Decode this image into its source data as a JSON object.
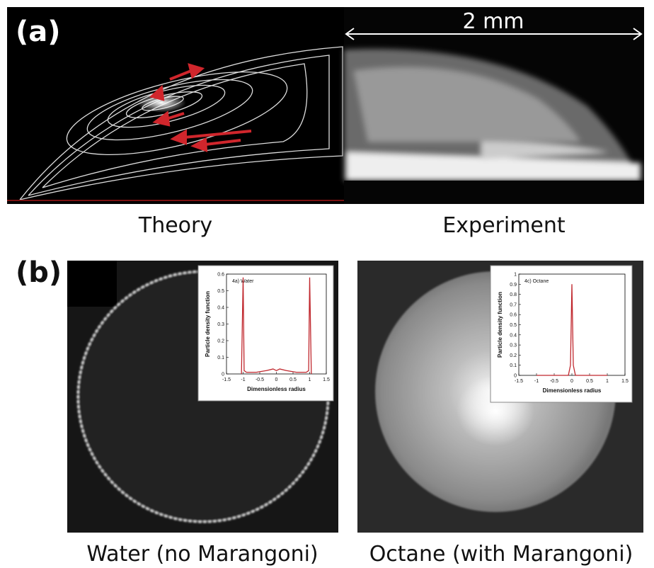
{
  "panel_a": {
    "label": "(a)",
    "scale_label": "2 mm",
    "captions": [
      "Theory",
      "Experiment"
    ]
  },
  "panel_b": {
    "label": "(b)",
    "captions": [
      "Water (no Marangoni)",
      "Octane (with Marangoni)"
    ]
  },
  "chart_data": [
    {
      "type": "line",
      "title": "4a) Water",
      "x_label": "Dimensionless radius",
      "y_label": "Particle density function",
      "x": [
        -1.05,
        -1.0,
        -0.97,
        -0.9,
        -0.6,
        -0.3,
        -0.1,
        0,
        0.1,
        0.3,
        0.6,
        0.9,
        0.97,
        1.0,
        1.05
      ],
      "series": [
        {
          "color": "#c0272d",
          "values": [
            0,
            0.58,
            0.02,
            0.01,
            0.01,
            0.02,
            0.03,
            0.02,
            0.03,
            0.02,
            0.01,
            0.01,
            0.02,
            0.58,
            0
          ]
        }
      ],
      "xlim": [
        -1.5,
        1.5
      ],
      "xticks": [
        -1.5,
        -1,
        -0.5,
        0,
        0.5,
        1,
        1.5
      ],
      "ylim": [
        0,
        0.6
      ],
      "yticks": [
        0,
        0.1,
        0.2,
        0.3,
        0.4,
        0.5,
        0.6
      ]
    },
    {
      "type": "line",
      "title": "4c) Octane",
      "x_label": "Dimensionless radius",
      "y_label": "Particle density function",
      "x": [
        -1,
        -0.1,
        -0.04,
        0,
        0.04,
        0.1,
        1
      ],
      "series": [
        {
          "color": "#c0272d",
          "values": [
            0,
            0,
            0.1,
            0.9,
            0.1,
            0,
            0
          ]
        }
      ],
      "xlim": [
        -1.5,
        1.5
      ],
      "xticks": [
        -1.5,
        -1,
        -0.5,
        0,
        0.5,
        1,
        1.5
      ],
      "ylim": [
        0,
        1
      ],
      "yticks": [
        0,
        0.1,
        0.2,
        0.3,
        0.4,
        0.5,
        0.6,
        0.7,
        0.8,
        0.9,
        1
      ]
    }
  ]
}
